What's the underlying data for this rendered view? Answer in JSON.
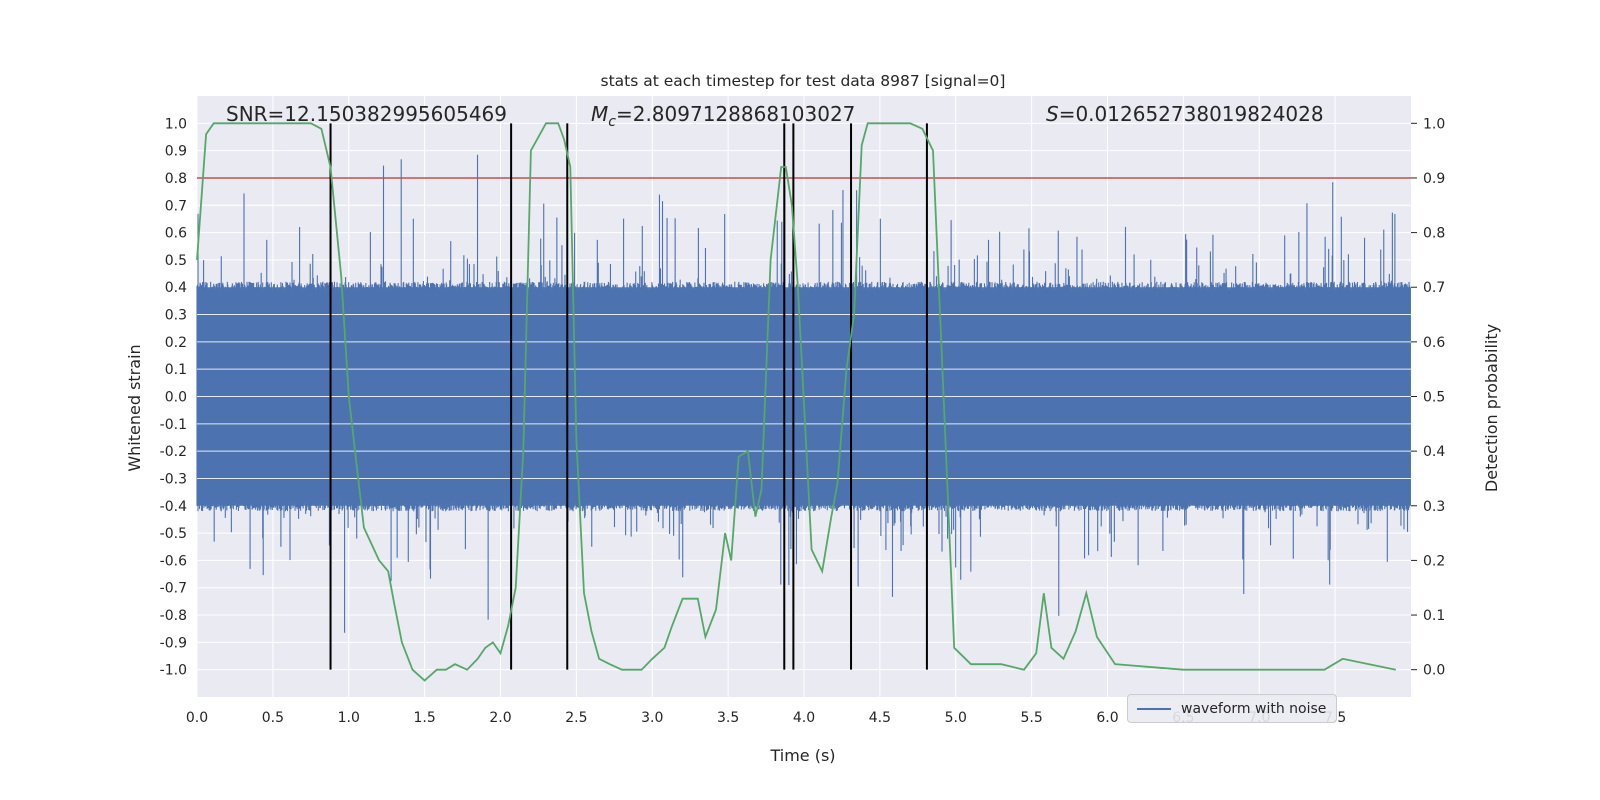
{
  "chart_data": {
    "type": "line",
    "title": "stats at each timestep for test data 8987 [signal=0]",
    "xlabel": "Time (s)",
    "ylabel": "Whitened strain",
    "y2label": "Detection probability",
    "xlim": [
      0.0,
      8.0
    ],
    "ylim": [
      -1.1,
      1.1
    ],
    "y2lim": [
      -0.05,
      1.05
    ],
    "x_ticks": [
      "0.0",
      "0.5",
      "1.0",
      "1.5",
      "2.0",
      "2.5",
      "3.0",
      "3.5",
      "4.0",
      "4.5",
      "5.0",
      "5.5",
      "6.0",
      "6.5",
      "7.0",
      "7.5"
    ],
    "y_ticks": [
      "1.0",
      "0.9",
      "0.8",
      "0.7",
      "0.6",
      "0.5",
      "0.4",
      "0.3",
      "0.2",
      "0.1",
      "0.0",
      "-0.1",
      "-0.2",
      "-0.3",
      "-0.4",
      "-0.5",
      "-0.6",
      "-0.7",
      "-0.8",
      "-0.9",
      "-1.0"
    ],
    "y2_ticks": [
      "1.0",
      "0.9",
      "0.8",
      "0.7",
      "0.6",
      "0.5",
      "0.4",
      "0.3",
      "0.2",
      "0.1",
      "0.0"
    ],
    "annotations": {
      "snr": "SNR=12.150382995605469",
      "mc_symbol": "M",
      "mc_sub": "c",
      "mc_value": "=2.8097128868103027",
      "s_symbol": "S",
      "s_value": "=0.012652738019824028"
    },
    "threshold": 0.9,
    "vlines": [
      0.88,
      2.07,
      2.44,
      3.87,
      3.93,
      4.31,
      4.81
    ],
    "strain_band": [
      -0.4,
      0.4
    ],
    "strain_band_spikes_extremes": [
      0.9,
      -0.9
    ],
    "legend": [
      "waveform with noise"
    ],
    "legend_position": "lower right",
    "grid": true,
    "series": [
      {
        "name": "waveform with noise",
        "axis": "left",
        "style": "dense noise waveform",
        "color": "#4c72b0"
      },
      {
        "axis": "right",
        "color": "#55a868",
        "x": [
          0.0,
          0.06,
          0.11,
          0.2,
          0.5,
          0.75,
          0.82,
          0.88,
          0.95,
          1.0,
          1.05,
          1.1,
          1.2,
          1.26,
          1.3,
          1.35,
          1.42,
          1.5,
          1.58,
          1.64,
          1.7,
          1.78,
          1.85,
          1.9,
          1.95,
          2.0,
          2.05,
          2.1,
          2.15,
          2.2,
          2.3,
          2.38,
          2.42,
          2.46,
          2.5,
          2.55,
          2.6,
          2.65,
          2.72,
          2.8,
          2.87,
          2.93,
          3.0,
          3.08,
          3.13,
          3.2,
          3.3,
          3.35,
          3.42,
          3.48,
          3.52,
          3.57,
          3.63,
          3.68,
          3.72,
          3.78,
          3.85,
          3.88,
          3.92,
          3.96,
          4.05,
          4.12,
          4.18,
          4.22,
          4.28,
          4.33,
          4.38,
          4.42,
          4.5,
          4.7,
          4.78,
          4.85,
          4.92,
          4.99,
          5.1,
          5.3,
          5.45,
          5.53,
          5.58,
          5.63,
          5.71,
          5.79,
          5.86,
          5.93,
          6.05,
          6.5,
          7.2,
          7.43,
          7.55,
          7.9
        ],
        "y": [
          0.75,
          0.98,
          1.0,
          1.0,
          1.0,
          1.0,
          0.99,
          0.92,
          0.72,
          0.5,
          0.38,
          0.26,
          0.2,
          0.18,
          0.12,
          0.05,
          0.0,
          -0.02,
          0.0,
          0.0,
          0.01,
          0.0,
          0.02,
          0.04,
          0.05,
          0.03,
          0.08,
          0.15,
          0.4,
          0.95,
          1.0,
          1.0,
          0.97,
          0.92,
          0.42,
          0.14,
          0.07,
          0.02,
          0.01,
          0.0,
          0.0,
          0.0,
          0.02,
          0.04,
          0.08,
          0.13,
          0.13,
          0.06,
          0.11,
          0.25,
          0.2,
          0.39,
          0.4,
          0.28,
          0.33,
          0.75,
          0.92,
          0.92,
          0.85,
          0.7,
          0.22,
          0.18,
          0.28,
          0.34,
          0.55,
          0.65,
          0.96,
          1.0,
          1.0,
          1.0,
          0.99,
          0.95,
          0.5,
          0.04,
          0.01,
          0.01,
          0.0,
          0.03,
          0.14,
          0.04,
          0.02,
          0.07,
          0.14,
          0.06,
          0.01,
          0.0,
          0.0,
          0.0,
          0.02,
          0.0
        ]
      }
    ]
  }
}
